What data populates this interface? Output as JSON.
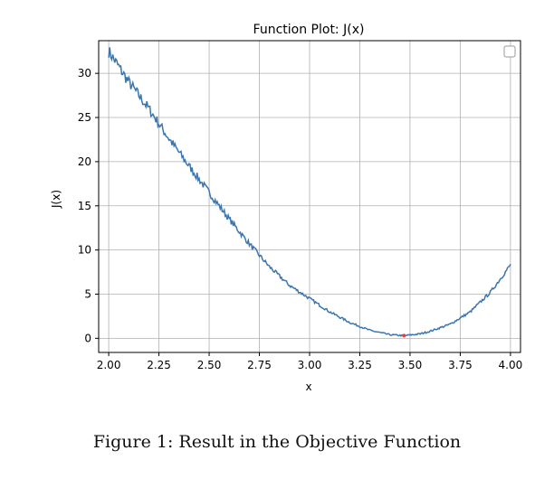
{
  "caption": "Figure 1: Result in the Objective Function",
  "chart_data": {
    "type": "line",
    "title": "Function Plot: J(x)",
    "xlabel": "x",
    "ylabel": "J(x)",
    "xlim": [
      1.95,
      4.05
    ],
    "ylim": [
      -1.6,
      33.7
    ],
    "xticks": [
      2.0,
      2.25,
      2.5,
      2.75,
      3.0,
      3.25,
      3.5,
      3.75,
      4.0
    ],
    "xtick_labels": [
      "2.00",
      "2.25",
      "2.50",
      "2.75",
      "3.00",
      "3.25",
      "3.50",
      "3.75",
      "4.00"
    ],
    "yticks": [
      0,
      5,
      10,
      15,
      20,
      25,
      30
    ],
    "ytick_labels": [
      "0",
      "5",
      "10",
      "15",
      "20",
      "25",
      "30"
    ],
    "grid": true,
    "legend": "top-right (empty)",
    "line_color": "#3b75af",
    "marker_color": "#e8413a",
    "series": [
      {
        "x": [
          2.0,
          2.1,
          2.2,
          2.25,
          2.3,
          2.4,
          2.5,
          2.6,
          2.7,
          2.8,
          2.9,
          3.0,
          3.1,
          3.2,
          3.3,
          3.4,
          3.47,
          3.55,
          3.6,
          3.7,
          3.8,
          3.9,
          4.0
        ],
        "y": [
          32.5,
          29.0,
          26.0,
          24.3,
          22.6,
          19.5,
          16.5,
          13.5,
          10.7,
          8.1,
          6.0,
          4.5,
          3.0,
          1.8,
          0.9,
          0.4,
          0.3,
          0.5,
          0.8,
          1.6,
          3.0,
          5.2,
          8.3
        ]
      }
    ],
    "minimum_point": {
      "x": 3.47,
      "y": 0.3
    }
  }
}
